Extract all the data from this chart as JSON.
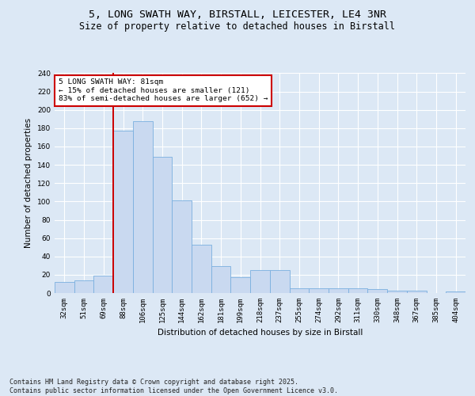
{
  "title1": "5, LONG SWATH WAY, BIRSTALL, LEICESTER, LE4 3NR",
  "title2": "Size of property relative to detached houses in Birstall",
  "xlabel": "Distribution of detached houses by size in Birstall",
  "ylabel": "Number of detached properties",
  "categories": [
    "32sqm",
    "51sqm",
    "69sqm",
    "88sqm",
    "106sqm",
    "125sqm",
    "144sqm",
    "162sqm",
    "181sqm",
    "199sqm",
    "218sqm",
    "237sqm",
    "255sqm",
    "274sqm",
    "292sqm",
    "311sqm",
    "330sqm",
    "348sqm",
    "367sqm",
    "385sqm",
    "404sqm"
  ],
  "values": [
    12,
    14,
    19,
    177,
    188,
    149,
    101,
    53,
    29,
    17,
    25,
    25,
    5,
    5,
    5,
    5,
    4,
    3,
    3,
    0,
    2
  ],
  "bar_color": "#c9d9f0",
  "bar_edge_color": "#7aafdf",
  "vline_x_idx": 3,
  "vline_color": "#cc0000",
  "annotation_text": "5 LONG SWATH WAY: 81sqm\n← 15% of detached houses are smaller (121)\n83% of semi-detached houses are larger (652) →",
  "annotation_box_color": "#ffffff",
  "annotation_box_edge": "#cc0000",
  "background_color": "#dce8f5",
  "plot_bg_color": "#dce8f5",
  "footer": "Contains HM Land Registry data © Crown copyright and database right 2025.\nContains public sector information licensed under the Open Government Licence v3.0.",
  "ylim": [
    0,
    240
  ],
  "yticks": [
    0,
    20,
    40,
    60,
    80,
    100,
    120,
    140,
    160,
    180,
    200,
    220,
    240
  ],
  "title1_fontsize": 9.5,
  "title2_fontsize": 8.5,
  "ylabel_fontsize": 7.5,
  "xlabel_fontsize": 7.5,
  "tick_fontsize": 6.5,
  "ann_fontsize": 6.8,
  "footer_fontsize": 6.0
}
